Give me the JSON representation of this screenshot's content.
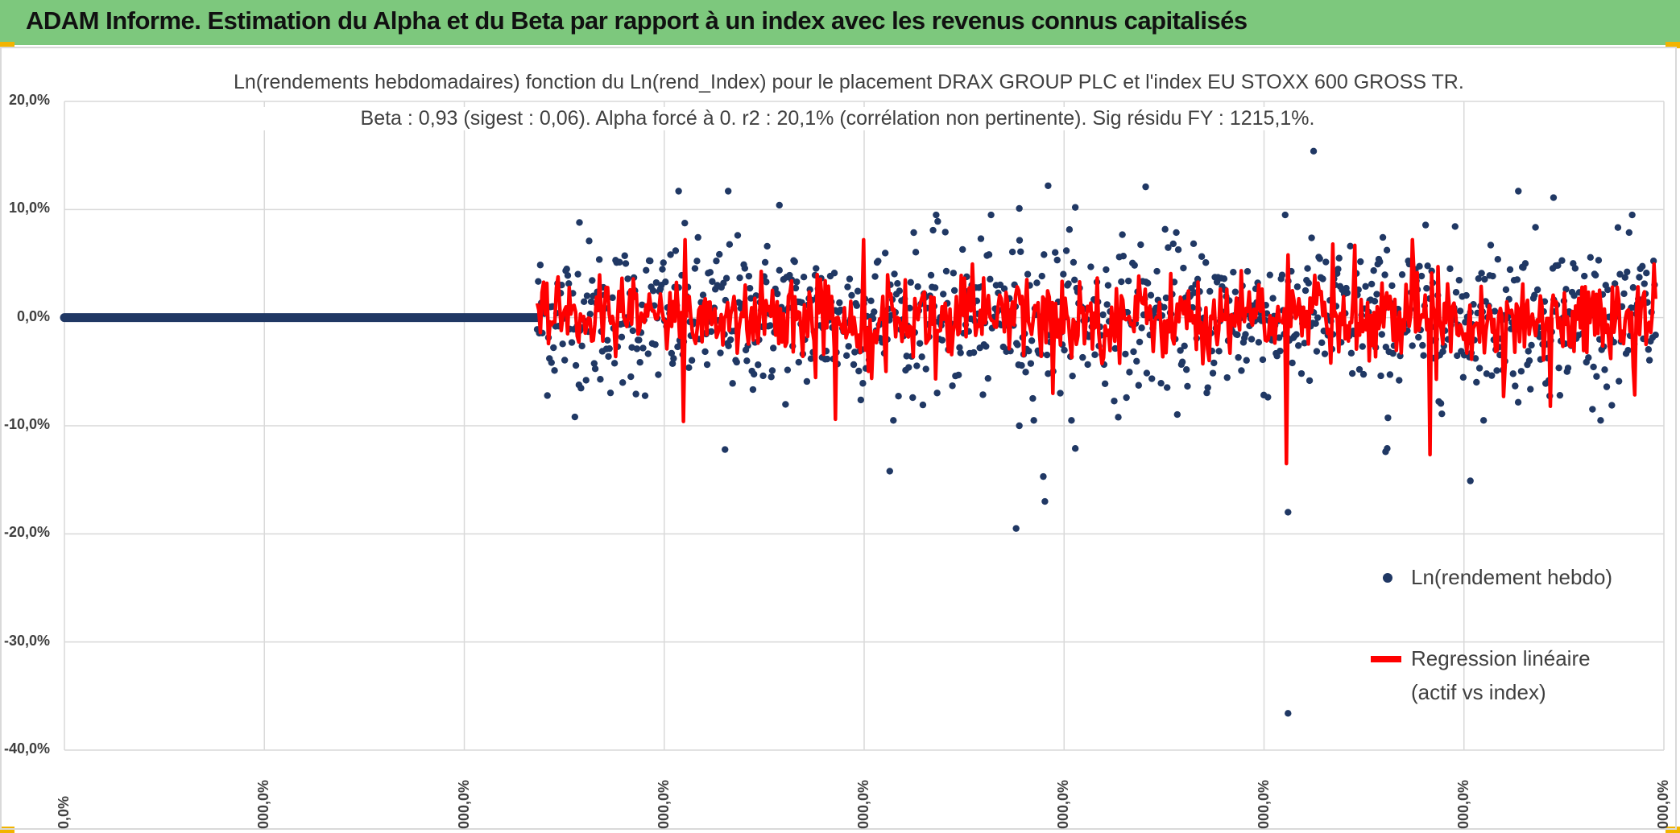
{
  "banner": {
    "title": "ADAM Informe. Estimation du Alpha et du Beta par rapport à un index avec les revenus connus capitalisés"
  },
  "chart_data": {
    "type": "scatter",
    "title": "Ln(rendements hebdomadaires) fonction du Ln(rend_Index) pour le placement DRAX GROUP PLC et l'index EU STOXX 600 GROSS TR.",
    "subtitle": "Beta : 0,93 (sigest : 0,06). Alpha forcé à 0. r2 : 20,1% (corrélation non pertinente). Sig résidu FY : 1215,1%.",
    "ylim": [
      -40,
      20
    ],
    "y_ticks": [
      "20,0%",
      "10,0%",
      "0,0%",
      "-10,0%",
      "-20,0%",
      "-30,0%",
      "-40,0%"
    ],
    "x_ticks": [
      "0,0%",
      "000,0%",
      "000,0%",
      "000,0%",
      "000,0%",
      "000,0%",
      "000,0%",
      "000,0%",
      "000,0%"
    ],
    "grid": true,
    "legend_position": "right",
    "series": [
      {
        "name": "Ln(rendement hebdo)",
        "kind": "points",
        "color": "#203864",
        "flat_segment": {
          "x_start": 0.0,
          "x_end": 0.2956,
          "y": 0.0
        },
        "highlighted_points": [
          {
            "x": 0.765,
            "y": -36.6
          },
          {
            "x": 0.595,
            "y": -19.5
          },
          {
            "x": 0.613,
            "y": -17.0
          },
          {
            "x": 0.765,
            "y": -18.0
          },
          {
            "x": 0.879,
            "y": -15.1
          },
          {
            "x": 0.516,
            "y": -14.2
          },
          {
            "x": 0.612,
            "y": -14.7
          },
          {
            "x": 0.413,
            "y": -12.2
          },
          {
            "x": 0.826,
            "y": -12.4
          },
          {
            "x": 0.632,
            "y": -12.1
          },
          {
            "x": 0.597,
            "y": -10.0
          },
          {
            "x": 0.827,
            "y": -12.1
          },
          {
            "x": 0.781,
            "y": 15.4
          },
          {
            "x": 0.615,
            "y": 12.2
          },
          {
            "x": 0.676,
            "y": 12.1
          },
          {
            "x": 0.909,
            "y": 11.7
          },
          {
            "x": 0.384,
            "y": 11.7
          },
          {
            "x": 0.415,
            "y": 11.7
          },
          {
            "x": 0.931,
            "y": 11.1
          },
          {
            "x": 0.447,
            "y": 10.4
          },
          {
            "x": 0.597,
            "y": 10.1
          },
          {
            "x": 0.632,
            "y": 10.2
          },
          {
            "x": 0.322,
            "y": 8.8
          },
          {
            "x": 0.546,
            "y": 8.9
          }
        ],
        "bulk_x_range": [
          0.2956,
          0.9948
        ],
        "bulk_spread_sd": 3.5
      },
      {
        "name": "Regression linéaire (actif vs index)",
        "kind": "line",
        "color": "#ff0000",
        "min": -13.5,
        "max": 7.2
      }
    ],
    "legend": [
      {
        "label": "Ln(rendement hebdo)",
        "marker": "dot"
      },
      {
        "label_line1": "Regression linéaire",
        "label_line2": "(actif vs index)",
        "marker": "line"
      }
    ]
  }
}
